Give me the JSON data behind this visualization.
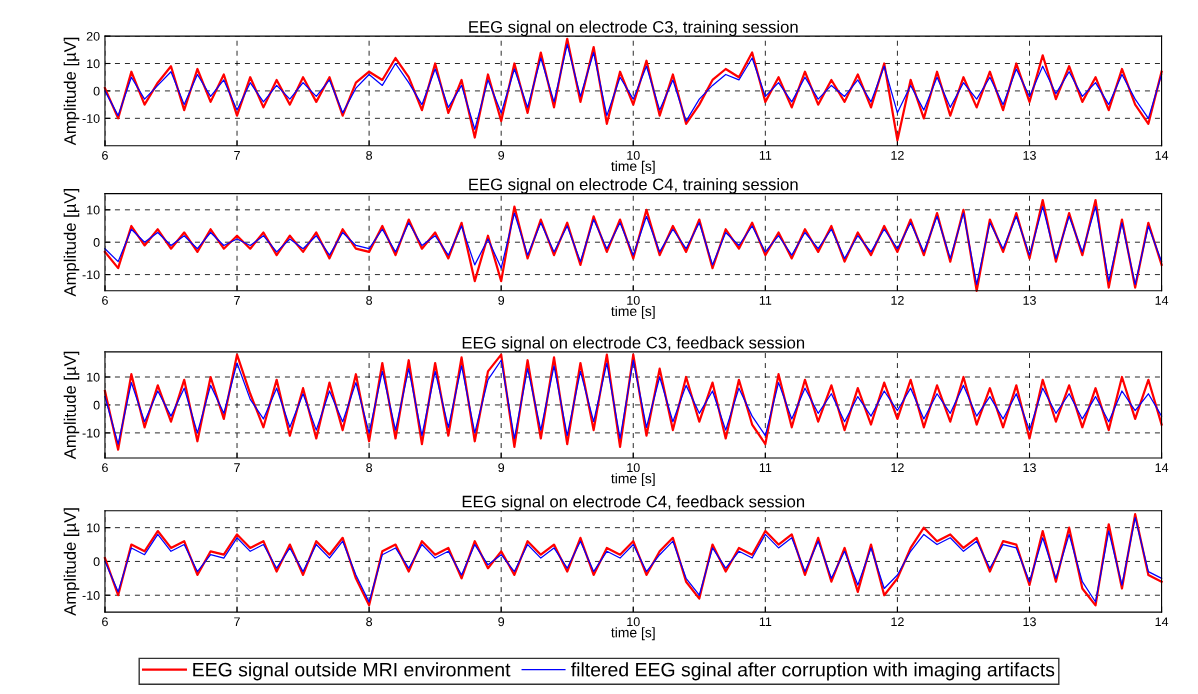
{
  "chart_data": [
    {
      "type": "line",
      "title": "EEG signal on electrode C3, training session",
      "xlabel": "time [s]",
      "ylabel": "Amplitude [µV]",
      "x": [
        6.0,
        6.1,
        6.2,
        6.3,
        6.4,
        6.5,
        6.6,
        6.7,
        6.8,
        6.9,
        7.0,
        7.1,
        7.2,
        7.3,
        7.4,
        7.5,
        7.6,
        7.7,
        7.8,
        7.9,
        8.0,
        8.1,
        8.2,
        8.3,
        8.4,
        8.5,
        8.6,
        8.7,
        8.8,
        8.9,
        9.0,
        9.1,
        9.2,
        9.3,
        9.4,
        9.5,
        9.6,
        9.7,
        9.8,
        9.9,
        10.0,
        10.1,
        10.2,
        10.3,
        10.4,
        10.5,
        10.6,
        10.7,
        10.8,
        10.9,
        11.0,
        11.1,
        11.2,
        11.3,
        11.4,
        11.5,
        11.6,
        11.7,
        11.8,
        11.9,
        12.0,
        12.1,
        12.2,
        12.3,
        12.4,
        12.5,
        12.6,
        12.7,
        12.8,
        12.9,
        13.0,
        13.1,
        13.2,
        13.3,
        13.4,
        13.5,
        13.6,
        13.7,
        13.8,
        13.9,
        14.0
      ],
      "series": [
        {
          "color": "#ff0000",
          "values": [
            1,
            -10,
            7,
            -5,
            3,
            9,
            -7,
            8,
            -4,
            6,
            -9,
            5,
            -6,
            4,
            -5,
            5,
            -4,
            5,
            -9,
            3,
            7,
            4,
            12,
            5,
            -7,
            10,
            -8,
            4,
            -17,
            6,
            -11,
            10,
            -8,
            14,
            -6,
            19,
            -4,
            16,
            -12,
            7,
            -5,
            11,
            -9,
            6,
            -12,
            -5,
            4,
            8,
            5,
            14,
            -4,
            5,
            -6,
            7,
            -5,
            4,
            -4,
            6,
            -6,
            10,
            -18,
            4,
            -10,
            7,
            -9,
            5,
            -6,
            7,
            -7,
            10,
            -4,
            13,
            -3,
            9,
            -4,
            5,
            -7,
            8,
            -5,
            -12,
            7
          ]
        },
        {
          "color": "#0000ff",
          "values": [
            0,
            -9,
            5,
            -3,
            2,
            7,
            -5,
            6,
            -2,
            4,
            -7,
            3,
            -4,
            2,
            -3,
            3,
            -2,
            4,
            -8,
            1,
            6,
            2,
            10,
            3,
            -5,
            8,
            -6,
            2,
            -14,
            4,
            -8,
            8,
            -6,
            12,
            -4,
            17,
            -2,
            14,
            -9,
            5,
            -3,
            9,
            -7,
            4,
            -11,
            -3,
            2,
            6,
            4,
            12,
            -2,
            3,
            -4,
            5,
            -3,
            2,
            -2,
            4,
            -4,
            9,
            -8,
            2,
            -7,
            5,
            -6,
            3,
            -3,
            5,
            -5,
            8,
            -2,
            9,
            -1,
            7,
            -2,
            3,
            -5,
            6,
            -3,
            -10,
            6
          ]
        }
      ],
      "xlim": [
        6,
        14
      ],
      "xticks": [
        6,
        7,
        8,
        9,
        10,
        11,
        12,
        13,
        14
      ],
      "ylim": [
        -20,
        20
      ],
      "yticks": [
        -10,
        0,
        10,
        20
      ],
      "grid": true
    },
    {
      "type": "line",
      "title": "EEG signal on electrode C4, training session",
      "xlabel": "time [s]",
      "ylabel": "Amplitude [µV]",
      "x": [
        6.0,
        6.1,
        6.2,
        6.3,
        6.4,
        6.5,
        6.6,
        6.7,
        6.8,
        6.9,
        7.0,
        7.1,
        7.2,
        7.3,
        7.4,
        7.5,
        7.6,
        7.7,
        7.8,
        7.9,
        8.0,
        8.1,
        8.2,
        8.3,
        8.4,
        8.5,
        8.6,
        8.7,
        8.8,
        8.9,
        9.0,
        9.1,
        9.2,
        9.3,
        9.4,
        9.5,
        9.6,
        9.7,
        9.8,
        9.9,
        10.0,
        10.1,
        10.2,
        10.3,
        10.4,
        10.5,
        10.6,
        10.7,
        10.8,
        10.9,
        11.0,
        11.1,
        11.2,
        11.3,
        11.4,
        11.5,
        11.6,
        11.7,
        11.8,
        11.9,
        12.0,
        12.1,
        12.2,
        12.3,
        12.4,
        12.5,
        12.6,
        12.7,
        12.8,
        12.9,
        13.0,
        13.1,
        13.2,
        13.3,
        13.4,
        13.5,
        13.6,
        13.7,
        13.8,
        13.9,
        14.0
      ],
      "series": [
        {
          "color": "#ff0000",
          "values": [
            -3,
            -8,
            5,
            -1,
            4,
            -2,
            3,
            -3,
            4,
            -2,
            2,
            -2,
            3,
            -4,
            2,
            -3,
            3,
            -5,
            4,
            -2,
            -3,
            5,
            -4,
            7,
            -2,
            3,
            -5,
            6,
            -12,
            2,
            -12,
            11,
            -5,
            7,
            -4,
            6,
            -7,
            8,
            -3,
            7,
            -5,
            10,
            -4,
            5,
            -3,
            7,
            -8,
            4,
            -2,
            6,
            -4,
            3,
            -5,
            4,
            -3,
            5,
            -6,
            3,
            -4,
            5,
            -3,
            7,
            -4,
            9,
            -6,
            10,
            -15,
            7,
            -3,
            9,
            -5,
            13,
            -6,
            9,
            -4,
            13,
            -14,
            7,
            -14,
            6,
            -7
          ]
        },
        {
          "color": "#0000ff",
          "values": [
            -2,
            -6,
            4,
            0,
            3,
            -1,
            2,
            -2,
            3,
            -1,
            1,
            -1,
            2,
            -3,
            1,
            -2,
            2,
            -4,
            3,
            -1,
            -2,
            4,
            -3,
            6,
            -1,
            2,
            -4,
            5,
            -7,
            1,
            -8,
            9,
            -4,
            6,
            -3,
            5,
            -6,
            7,
            -2,
            6,
            -4,
            8,
            -3,
            4,
            -2,
            6,
            -7,
            3,
            -1,
            5,
            -3,
            2,
            -4,
            3,
            -2,
            4,
            -5,
            2,
            -3,
            4,
            -2,
            6,
            -3,
            8,
            -5,
            9,
            -13,
            6,
            -2,
            8,
            -4,
            11,
            -5,
            8,
            -3,
            11,
            -12,
            6,
            -13,
            5,
            -6
          ]
        }
      ],
      "xlim": [
        6,
        14
      ],
      "xticks": [
        6,
        7,
        8,
        9,
        10,
        11,
        12,
        13,
        14
      ],
      "ylim": [
        -15,
        15
      ],
      "yticks": [
        -10,
        0,
        10
      ],
      "grid": true
    },
    {
      "type": "line",
      "title": "EEG signal on electrode C3, feedback session",
      "xlabel": "time [s]",
      "ylabel": "Amplitude [µV]",
      "x": [
        6.0,
        6.1,
        6.2,
        6.3,
        6.4,
        6.5,
        6.6,
        6.7,
        6.8,
        6.9,
        7.0,
        7.1,
        7.2,
        7.3,
        7.4,
        7.5,
        7.6,
        7.7,
        7.8,
        7.9,
        8.0,
        8.1,
        8.2,
        8.3,
        8.4,
        8.5,
        8.6,
        8.7,
        8.8,
        8.9,
        9.0,
        9.1,
        9.2,
        9.3,
        9.4,
        9.5,
        9.6,
        9.7,
        9.8,
        9.9,
        10.0,
        10.1,
        10.2,
        10.3,
        10.4,
        10.5,
        10.6,
        10.7,
        10.8,
        10.9,
        11.0,
        11.1,
        11.2,
        11.3,
        11.4,
        11.5,
        11.6,
        11.7,
        11.8,
        11.9,
        12.0,
        12.1,
        12.2,
        12.3,
        12.4,
        12.5,
        12.6,
        12.7,
        12.8,
        12.9,
        13.0,
        13.1,
        13.2,
        13.3,
        13.4,
        13.5,
        13.6,
        13.7,
        13.8,
        13.9,
        14.0
      ],
      "series": [
        {
          "color": "#ff0000",
          "values": [
            5,
            -16,
            11,
            -8,
            7,
            -6,
            9,
            -13,
            10,
            -5,
            18,
            4,
            -8,
            9,
            -11,
            6,
            -12,
            8,
            -9,
            11,
            -13,
            15,
            -12,
            16,
            -14,
            15,
            -11,
            17,
            -13,
            12,
            18,
            -15,
            16,
            -12,
            17,
            -14,
            15,
            -9,
            18,
            -15,
            18,
            -11,
            13,
            -9,
            10,
            -6,
            8,
            -12,
            9,
            -7,
            -14,
            11,
            -8,
            9,
            -6,
            7,
            -9,
            6,
            -7,
            8,
            -5,
            9,
            -8,
            7,
            -6,
            10,
            -7,
            6,
            -8,
            7,
            -12,
            9,
            -6,
            7,
            -8,
            6,
            -9,
            10,
            -5,
            9,
            -7
          ]
        },
        {
          "color": "#0000ff",
          "values": [
            3,
            -14,
            8,
            -6,
            5,
            -4,
            6,
            -10,
            7,
            -3,
            15,
            2,
            -5,
            6,
            -8,
            4,
            -9,
            5,
            -6,
            8,
            -10,
            12,
            -9,
            13,
            -11,
            12,
            -8,
            14,
            -10,
            9,
            16,
            -12,
            13,
            -9,
            14,
            -11,
            12,
            -6,
            15,
            -12,
            16,
            -8,
            10,
            -6,
            7,
            -3,
            5,
            -9,
            6,
            -4,
            -11,
            8,
            -5,
            6,
            -3,
            4,
            -6,
            3,
            -4,
            5,
            -2,
            6,
            -5,
            4,
            -3,
            7,
            -4,
            3,
            -5,
            4,
            -9,
            6,
            -3,
            4,
            -5,
            3,
            -6,
            5,
            -2,
            4,
            -4
          ]
        }
      ],
      "xlim": [
        6,
        14
      ],
      "xticks": [
        6,
        7,
        8,
        9,
        10,
        11,
        12,
        13,
        14
      ],
      "ylim": [
        -19,
        19
      ],
      "yticks": [
        -10,
        0,
        10
      ],
      "grid": true
    },
    {
      "type": "line",
      "title": "EEG signal on electrode C4, feedback session",
      "xlabel": "time [s]",
      "ylabel": "Amplitude [µV]",
      "x": [
        6.0,
        6.1,
        6.2,
        6.3,
        6.4,
        6.5,
        6.6,
        6.7,
        6.8,
        6.9,
        7.0,
        7.1,
        7.2,
        7.3,
        7.4,
        7.5,
        7.6,
        7.7,
        7.8,
        7.9,
        8.0,
        8.1,
        8.2,
        8.3,
        8.4,
        8.5,
        8.6,
        8.7,
        8.8,
        8.9,
        9.0,
        9.1,
        9.2,
        9.3,
        9.4,
        9.5,
        9.6,
        9.7,
        9.8,
        9.9,
        10.0,
        10.1,
        10.2,
        10.3,
        10.4,
        10.5,
        10.6,
        10.7,
        10.8,
        10.9,
        11.0,
        11.1,
        11.2,
        11.3,
        11.4,
        11.5,
        11.6,
        11.7,
        11.8,
        11.9,
        12.0,
        12.1,
        12.2,
        12.3,
        12.4,
        12.5,
        12.6,
        12.7,
        12.8,
        12.9,
        13.0,
        13.1,
        13.2,
        13.3,
        13.4,
        13.5,
        13.6,
        13.7,
        13.8,
        13.9,
        14.0
      ],
      "series": [
        {
          "name": "EEG signal outside MRI environment",
          "color": "#ff0000",
          "values": [
            1,
            -10,
            5,
            3,
            9,
            4,
            6,
            -4,
            3,
            2,
            8,
            4,
            6,
            -3,
            5,
            -4,
            6,
            2,
            7,
            -5,
            -13,
            3,
            5,
            -3,
            6,
            2,
            4,
            -5,
            6,
            -2,
            3,
            -4,
            6,
            2,
            5,
            -3,
            7,
            -4,
            4,
            2,
            6,
            -4,
            3,
            7,
            -6,
            -11,
            5,
            -3,
            4,
            2,
            9,
            5,
            8,
            -4,
            7,
            -6,
            4,
            -9,
            5,
            -10,
            -5,
            4,
            10,
            6,
            8,
            4,
            7,
            -3,
            6,
            5,
            -7,
            9,
            -6,
            10,
            -8,
            -13,
            11,
            -8,
            14,
            -4,
            -6
          ]
        },
        {
          "name": "filtered EEG sginal after corruption with imaging artifacts",
          "color": "#0000ff",
          "values": [
            0,
            -9,
            4,
            2,
            8,
            3,
            5,
            -3,
            2,
            1,
            7,
            3,
            5,
            -2,
            4,
            -3,
            5,
            1,
            6,
            -4,
            -12,
            2,
            4,
            -2,
            5,
            1,
            3,
            -4,
            5,
            -1,
            2,
            -3,
            5,
            1,
            4,
            -2,
            6,
            -3,
            3,
            1,
            5,
            -3,
            2,
            6,
            -5,
            -10,
            4,
            -2,
            3,
            1,
            8,
            4,
            7,
            -3,
            6,
            -5,
            3,
            -7,
            4,
            -8,
            -4,
            3,
            8,
            5,
            7,
            3,
            6,
            -2,
            5,
            4,
            -6,
            7,
            -5,
            8,
            -6,
            -12,
            9,
            -7,
            13,
            -3,
            -5
          ]
        }
      ],
      "xlim": [
        6,
        14
      ],
      "xticks": [
        6,
        7,
        8,
        9,
        10,
        11,
        12,
        13,
        14
      ],
      "ylim": [
        -15,
        15
      ],
      "yticks": [
        -10,
        0,
        10
      ],
      "grid": true,
      "legend": "bottom"
    }
  ]
}
